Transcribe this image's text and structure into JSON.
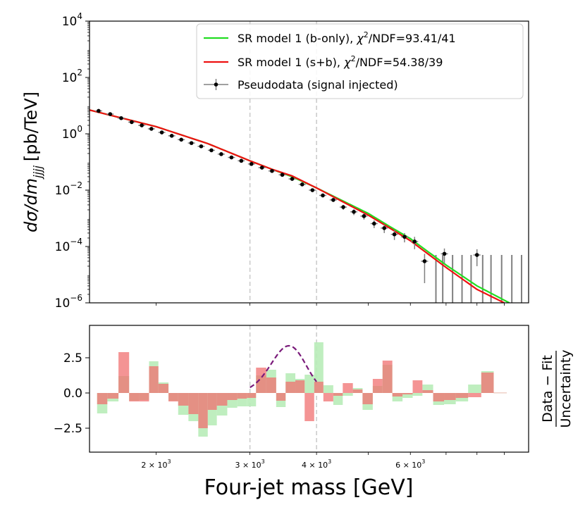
{
  "chart_data": [
    {
      "type": "line",
      "title": "",
      "xlabel": "Four-jet mass [GeV]",
      "ylabel": {
        "main": "dσ/dm",
        "sub": "jjjj",
        "unit": "[pb/TeV]"
      },
      "yscale": "log",
      "xscale": "log",
      "ylim": [
        1e-06,
        10000.0
      ],
      "xlim": [
        1500,
        10000
      ],
      "y_ticks": [
        {
          "value": 10000.0,
          "base": "10",
          "exp": "4"
        },
        {
          "value": 100.0,
          "base": "10",
          "exp": "2"
        },
        {
          "value": 1.0,
          "base": "10",
          "exp": "0"
        },
        {
          "value": 0.01,
          "base": "10",
          "exp": "−2"
        },
        {
          "value": 0.0001,
          "base": "10",
          "exp": "−4"
        },
        {
          "value": 1e-06,
          "base": "10",
          "exp": "−6"
        }
      ],
      "vertical_lines": [
        3000,
        4000
      ],
      "legend_position": "top-right",
      "legend": [
        {
          "label_pre": "SR model 1 (b-only), ",
          "chi": "χ",
          "sq": "2",
          "label_post": "/NDF=93.41/41",
          "color": "#22dd22"
        },
        {
          "label_pre": "SR model 1 (s+b), ",
          "chi": "χ",
          "sq": "2",
          "label_post": "/NDF=54.38/39",
          "color": "#ee1111"
        },
        {
          "label_pre": "Pseudodata (signal injected)",
          "chi": "",
          "sq": "",
          "label_post": "",
          "color": "#000000"
        }
      ],
      "series": [
        {
          "name": "SR model 1 (b-only)",
          "color": "#22dd22",
          "x": [
            1500,
            2000,
            2500,
            3000,
            3300,
            3600,
            4000,
            4500,
            5000,
            5500,
            6000,
            7000,
            8000,
            9200
          ],
          "y": [
            7,
            1.8,
            0.45,
            0.11,
            0.055,
            0.03,
            0.012,
            0.004,
            0.0015,
            0.0005,
            0.00019,
            2.2e-05,
            4e-06,
            1e-06
          ]
        },
        {
          "name": "SR model 1 (s+b)",
          "color": "#ee1111",
          "x": [
            1500,
            2000,
            2500,
            3000,
            3300,
            3600,
            4000,
            4500,
            5000,
            5500,
            6000,
            7000,
            8000,
            9000
          ],
          "y": [
            7,
            1.8,
            0.45,
            0.11,
            0.055,
            0.032,
            0.012,
            0.0037,
            0.0013,
            0.00044,
            0.00016,
            1.8e-05,
            3e-06,
            1e-06
          ]
        }
      ],
      "points": {
        "name": "Pseudodata (signal injected)",
        "x": [
          1560,
          1640,
          1720,
          1800,
          1880,
          1960,
          2050,
          2140,
          2230,
          2330,
          2430,
          2540,
          2650,
          2770,
          2890,
          3020,
          3160,
          3300,
          3450,
          3600,
          3760,
          3930,
          4110,
          4300,
          4490,
          4700,
          4910,
          5130,
          5360,
          5600,
          5850,
          6110,
          6380,
          6950,
          8000
        ],
        "y": [
          6.5,
          5.0,
          3.6,
          2.6,
          2.0,
          1.5,
          1.12,
          0.85,
          0.62,
          0.47,
          0.36,
          0.26,
          0.19,
          0.145,
          0.11,
          0.085,
          0.063,
          0.048,
          0.035,
          0.025,
          0.016,
          0.01,
          0.0065,
          0.0045,
          0.0025,
          0.0017,
          0.0012,
          0.00065,
          0.00045,
          0.00027,
          0.00022,
          0.00015,
          3e-05,
          5.5e-05,
          5e-05
        ],
        "yerr": [
          0.25,
          0.2,
          0.15,
          0.12,
          0.1,
          0.08,
          0.06,
          0.04,
          0.03,
          0.025,
          0.02,
          0.015,
          0.012,
          0.01,
          0.008,
          0.006,
          0.005,
          0.004,
          0.003,
          0.003,
          0.002,
          0.0015,
          0.001,
          0.0007,
          0.0005,
          0.0004,
          0.0003,
          0.0002,
          0.00015,
          0.0001,
          8e-05,
          7e-05,
          2.5e-05,
          3e-05,
          3e-05
        ]
      },
      "empty_bins_x": [
        6700,
        6900,
        7200,
        7500,
        7800,
        8200,
        8500,
        8900,
        9300,
        9700
      ],
      "empty_bins_upper": 5e-05
    },
    {
      "type": "bar",
      "title": "",
      "xlabel": "Four-jet mass [GeV]",
      "ylabel_num": "Data − Fit",
      "ylabel_den": "Uncertainty",
      "xscale": "log",
      "ylim": [
        -4.2,
        4.8
      ],
      "xlim": [
        1500,
        10000
      ],
      "y_ticks": [
        {
          "value": 2.5,
          "label": "2.5"
        },
        {
          "value": 0.0,
          "label": "0.0"
        },
        {
          "value": -2.5,
          "label": "−2.5"
        }
      ],
      "x_ticks": [
        {
          "value": 2000,
          "label": "2 × 10",
          "exp": "3"
        },
        {
          "value": 3000,
          "label": "3 × 10",
          "exp": "3"
        },
        {
          "value": 4000,
          "label": "4 × 10",
          "exp": "3"
        },
        {
          "value": 6000,
          "label": "6 × 10",
          "exp": "3"
        }
      ],
      "vertical_lines": [
        3000,
        4000
      ],
      "bin_edges": [
        1550,
        1620,
        1700,
        1780,
        1860,
        1940,
        2020,
        2110,
        2200,
        2300,
        2400,
        2500,
        2600,
        2720,
        2840,
        2960,
        3080,
        3220,
        3360,
        3500,
        3650,
        3800,
        3960,
        4120,
        4300,
        4480,
        4680,
        4880,
        5100,
        5320,
        5550,
        5800,
        6060,
        6320,
        6620,
        6940,
        7300,
        7700,
        8150,
        8600,
        9100
      ],
      "series": [
        {
          "name": "b-only residuals",
          "color": "#b8ecb8",
          "values": [
            -1.45,
            -0.6,
            1.2,
            -0.55,
            -0.5,
            2.25,
            0.75,
            -0.55,
            -1.55,
            -2.0,
            -3.1,
            -2.3,
            -1.6,
            -1.05,
            -0.95,
            -0.95,
            1.25,
            1.65,
            -1.0,
            1.4,
            1.0,
            1.3,
            3.6,
            0.55,
            -0.85,
            -0.2,
            0.35,
            -1.2,
            0.5,
            2.0,
            -0.6,
            -0.35,
            -0.2,
            0.6,
            -0.85,
            -0.8,
            -0.6,
            0.6,
            1.55,
            0.02
          ]
        },
        {
          "name": "s+b residuals",
          "color": "#f07070",
          "values": [
            -0.8,
            -0.4,
            2.9,
            -0.6,
            -0.6,
            1.9,
            0.65,
            -0.6,
            -0.9,
            -1.5,
            -2.5,
            -1.2,
            -0.9,
            -0.5,
            -0.4,
            -0.35,
            1.8,
            1.1,
            -0.55,
            0.8,
            0.9,
            -2.0,
            0.8,
            -0.6,
            -0.2,
            0.7,
            0.25,
            -0.8,
            1.0,
            2.3,
            -0.25,
            -0.1,
            0.9,
            0.2,
            -0.6,
            -0.5,
            -0.35,
            -0.3,
            1.45,
            0.02
          ]
        }
      ],
      "signal_curve": {
        "name": "injected signal",
        "color": "#7a1a7a",
        "style": "dashed",
        "mean": 3550,
        "width_frac": 0.075,
        "amplitude": 3.35,
        "x_range": [
          3000,
          4000
        ]
      }
    }
  ]
}
